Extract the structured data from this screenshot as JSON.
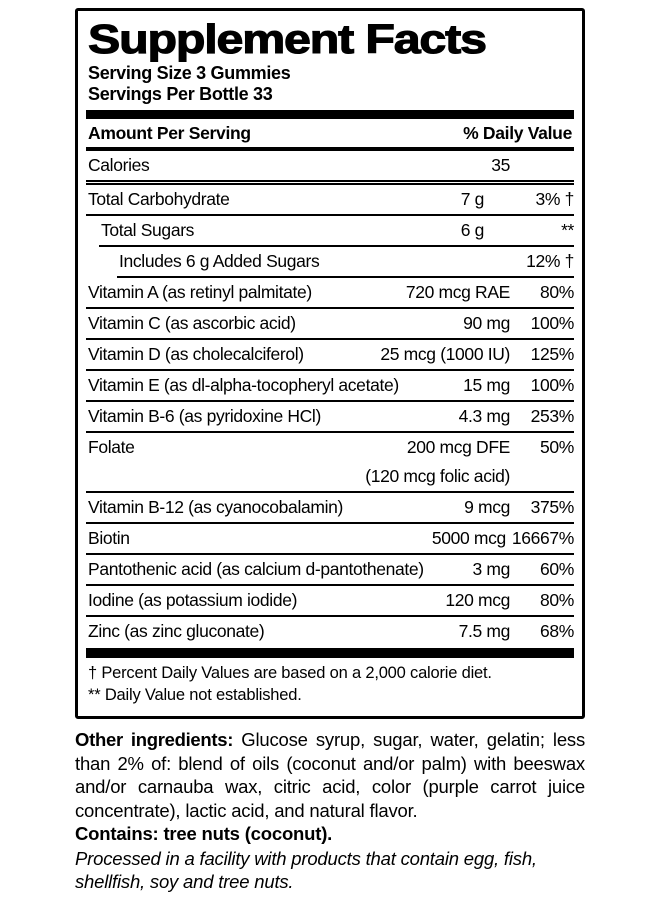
{
  "colors": {
    "ink": "#000000",
    "background": "#ffffff"
  },
  "label": {
    "title": "Supplement Facts",
    "serving_size": "Serving Size 3 Gummies",
    "servings_per_bottle": "Servings Per Bottle 33",
    "columns": {
      "left": "Amount Per Serving",
      "right": "% Daily Value"
    },
    "rows": [
      {
        "name": "Calories",
        "amount": "35",
        "dv": "",
        "indent": 0,
        "sep": "double"
      },
      {
        "name": "Total Carbohydrate",
        "amount": "7 g",
        "dv": "3% †",
        "indent": 0,
        "pad_amount": true
      },
      {
        "name": "Total Sugars",
        "amount": "6 g",
        "dv": "**",
        "indent": 1,
        "pad_amount": true
      },
      {
        "name": "Includes 6 g Added Sugars",
        "amount": "",
        "dv": "12% †",
        "indent": 2
      },
      {
        "name": "Vitamin A (as retinyl palmitate)",
        "amount": "720 mcg RAE",
        "dv": "80%",
        "indent": 0
      },
      {
        "name": "Vitamin C (as ascorbic acid)",
        "amount": "90 mg",
        "dv": "100%",
        "indent": 0
      },
      {
        "name": "Vitamin D (as cholecalciferol)",
        "amount": "25 mcg (1000 IU)",
        "dv": "125%",
        "indent": 0
      },
      {
        "name": "Vitamin E (as dl-alpha-tocopheryl acetate)",
        "amount": "15 mg",
        "dv": "100%",
        "indent": 0
      },
      {
        "name": "Vitamin B-6 (as pyridoxine HCl)",
        "amount": "4.3 mg",
        "dv": "253%",
        "indent": 0
      },
      {
        "name": "Folate",
        "amount": "200 mcg DFE",
        "amount2": "(120 mcg folic acid)",
        "dv": "50%",
        "indent": 0
      },
      {
        "name": "Vitamin B-12 (as cyanocobalamin)",
        "amount": "9 mcg",
        "dv": "375%",
        "indent": 0
      },
      {
        "name": "Biotin",
        "amount": "5000 mcg",
        "dv": "16667%",
        "indent": 0
      },
      {
        "name": "Pantothenic acid (as calcium d-pantothenate)",
        "amount": "3 mg",
        "dv": "60%",
        "indent": 0
      },
      {
        "name": "Iodine (as potassium iodide)",
        "amount": "120 mcg",
        "dv": "80%",
        "indent": 0
      },
      {
        "name": "Zinc (as zinc gluconate)",
        "amount": "7.5 mg",
        "dv": "68%",
        "indent": 0
      }
    ],
    "footnotes": [
      "† Percent Daily Values are based on a 2,000 calorie diet.",
      "** Daily Value not established."
    ]
  },
  "ingredients": {
    "other_label": "Other ingredients:",
    "other_text": " Glucose syrup, sugar, water, gelatin; less than 2% of: blend of oils (coconut and/or palm) with beeswax and/or carnauba wax, citric acid, color (purple carrot juice concentrate), lactic acid, and natural flavor.",
    "contains": "Contains: tree nuts (coconut).",
    "allergen_notice": "Processed in a facility with products that contain egg, fish, shellfish, soy and tree nuts."
  }
}
